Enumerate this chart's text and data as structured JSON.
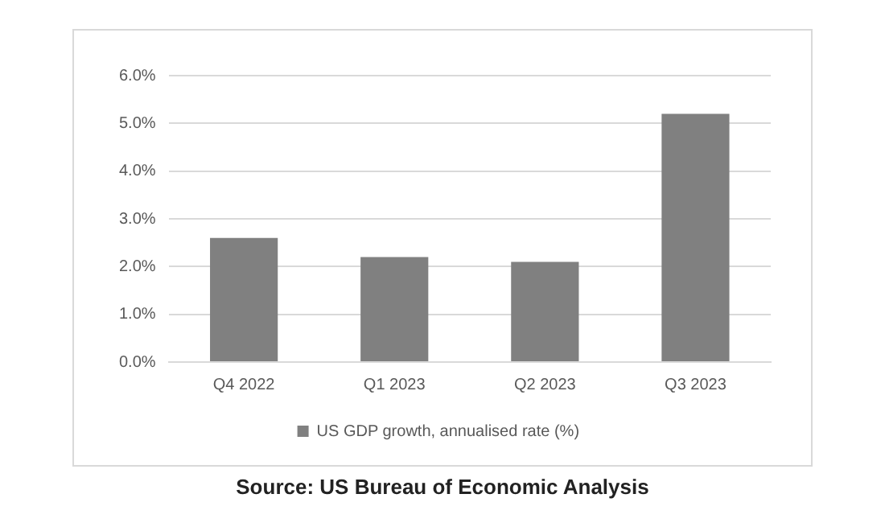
{
  "chart_data": {
    "type": "bar",
    "categories": [
      "Q4 2022",
      "Q1 2023",
      "Q2 2023",
      "Q3 2023"
    ],
    "series": [
      {
        "name": "US GDP growth, annualised rate (%)",
        "color": "#808080",
        "values": [
          2.6,
          2.2,
          2.1,
          5.2
        ]
      }
    ],
    "ylim": [
      0,
      6
    ],
    "yticks": [
      {
        "value": 0,
        "label": "0.0%"
      },
      {
        "value": 1,
        "label": "1.0%"
      },
      {
        "value": 2,
        "label": "2.0%"
      },
      {
        "value": 3,
        "label": "3.0%"
      },
      {
        "value": 4,
        "label": "4.0%"
      },
      {
        "value": 5,
        "label": "5.0%"
      },
      {
        "value": 6,
        "label": "6.0%"
      }
    ],
    "grid": "y",
    "legend": "bottom",
    "annotations": [
      "Source: US Bureau of Economic Analysis"
    ]
  }
}
